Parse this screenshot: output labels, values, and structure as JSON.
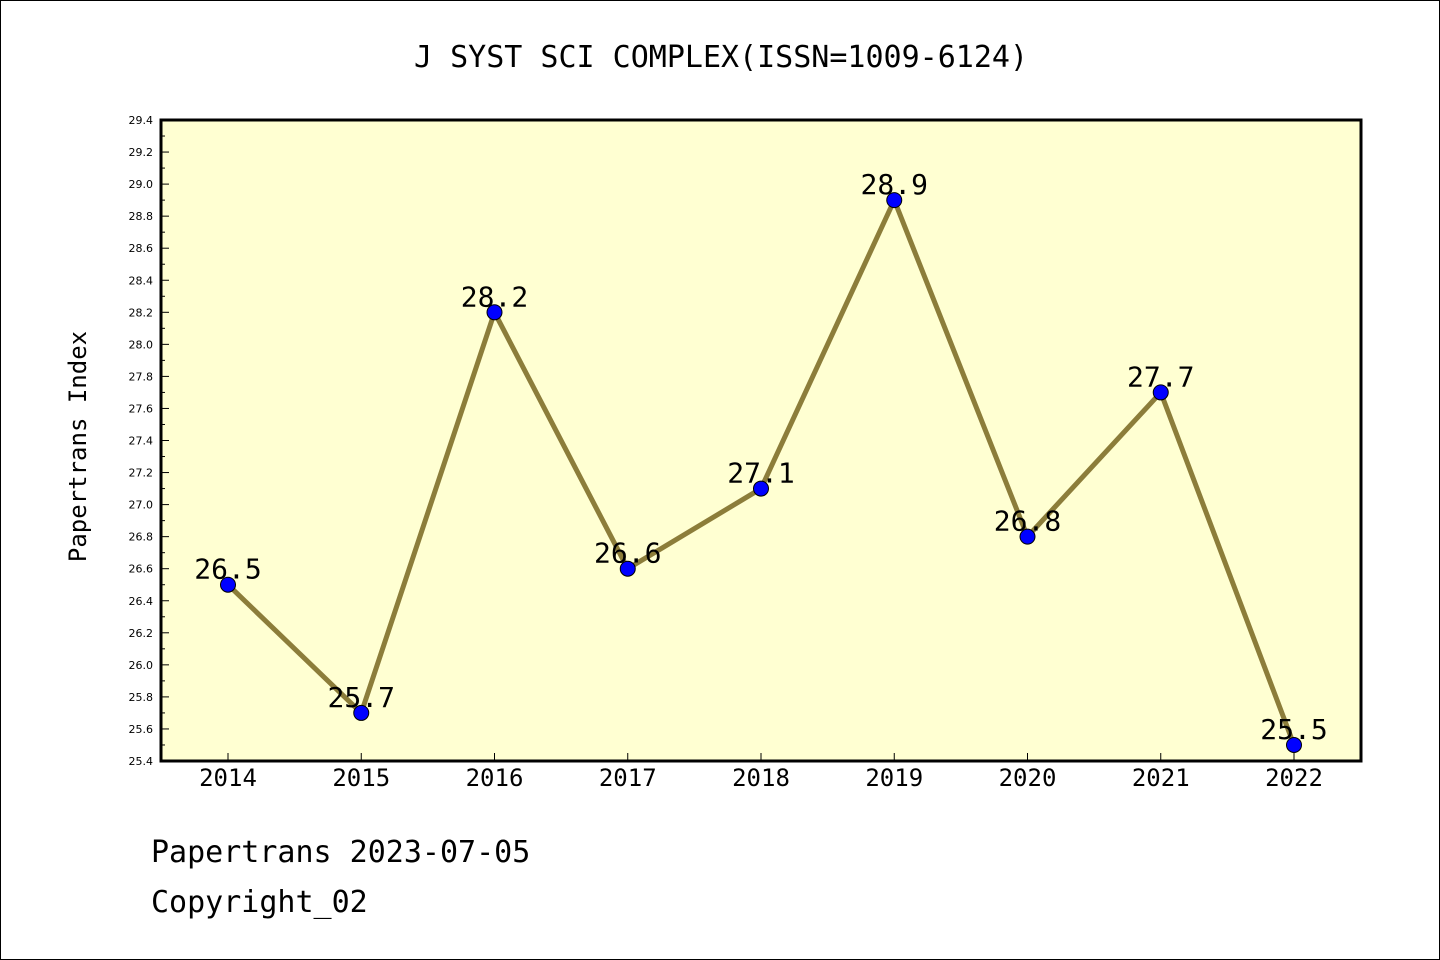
{
  "chart_data": {
    "type": "line",
    "title": "J SYST SCI COMPLEX(ISSN=1009-6124)",
    "xlabel": "",
    "ylabel": "Papertrans Index",
    "categories": [
      "2014",
      "2015",
      "2016",
      "2017",
      "2018",
      "2019",
      "2020",
      "2021",
      "2022"
    ],
    "values": [
      26.5,
      25.7,
      28.2,
      26.6,
      27.1,
      28.9,
      26.8,
      27.7,
      25.5
    ],
    "data_labels": [
      "26.5",
      "25.7",
      "28.2",
      "26.6",
      "27.1",
      "28.9",
      "26.8",
      "27.7",
      "25.5"
    ],
    "ylim": [
      25.4,
      29.4
    ],
    "yticks": [
      "25.4",
      "25.6",
      "25.8",
      "26.0",
      "26.2",
      "26.4",
      "26.6",
      "26.8",
      "27.0",
      "27.2",
      "27.4",
      "27.6",
      "27.8",
      "28.0",
      "28.2",
      "28.4",
      "28.6",
      "28.8",
      "29.0",
      "29.2",
      "29.4"
    ],
    "grid": false,
    "colors": {
      "line": "#8c7d3a",
      "marker": "#0000ff",
      "plot_background": "#ffffd2"
    }
  },
  "footer": {
    "stamp": "Papertrans 2023-07-05",
    "copyright": "Copyright_02"
  }
}
